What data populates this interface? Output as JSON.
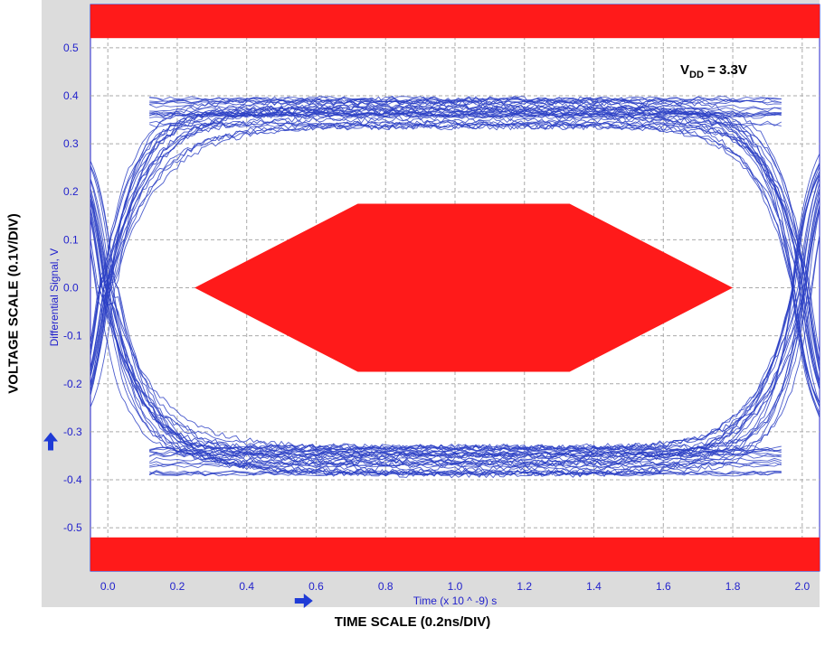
{
  "chart_data": {
    "type": "line",
    "title": "",
    "xlabel": "Time (x 10 ^ -9) s",
    "ylabel": "Differential Signal, V",
    "outer_xlabel": "TIME SCALE (0.2ns/DIV)",
    "outer_ylabel": "VOLTAGE SCALE (0.1V/DIV)",
    "annotation": {
      "base": "V",
      "sub": "DD",
      "rest": " = 3.3V"
    },
    "xlim": [
      -0.05,
      2.05
    ],
    "ylim": [
      -0.59,
      0.59
    ],
    "xticks": [
      "0.0",
      "0.2",
      "0.4",
      "0.6",
      "0.8",
      "1.0",
      "1.2",
      "1.4",
      "1.6",
      "1.8",
      "2.0"
    ],
    "xtick_values": [
      0.0,
      0.2,
      0.4,
      0.6,
      0.8,
      1.0,
      1.2,
      1.4,
      1.6,
      1.8,
      2.0
    ],
    "yticks": [
      "0.5",
      "0.4",
      "0.3",
      "0.2",
      "0.1",
      "0.0",
      "-0.1",
      "-0.2",
      "-0.3",
      "-0.4",
      "-0.5"
    ],
    "ytick_values": [
      0.5,
      0.4,
      0.3,
      0.2,
      0.1,
      0.0,
      -0.1,
      -0.2,
      -0.3,
      -0.4,
      -0.5
    ],
    "grid": true,
    "eye": {
      "high_level_band": [
        0.335,
        0.395
      ],
      "low_level_band": [
        -0.39,
        -0.33
      ],
      "crossing_times": [
        0.0,
        2.0
      ],
      "trace_color": "#2b3fc4",
      "trace_count": 40
    },
    "masks": {
      "color": "#ff1a1a",
      "upper_band": [
        0.52,
        0.59
      ],
      "lower_band": [
        -0.59,
        -0.52
      ],
      "hexagon": [
        [
          0.25,
          0.0
        ],
        [
          0.72,
          0.175
        ],
        [
          1.33,
          0.175
        ],
        [
          1.8,
          0.0
        ],
        [
          1.33,
          -0.175
        ],
        [
          0.72,
          -0.175
        ]
      ]
    }
  }
}
